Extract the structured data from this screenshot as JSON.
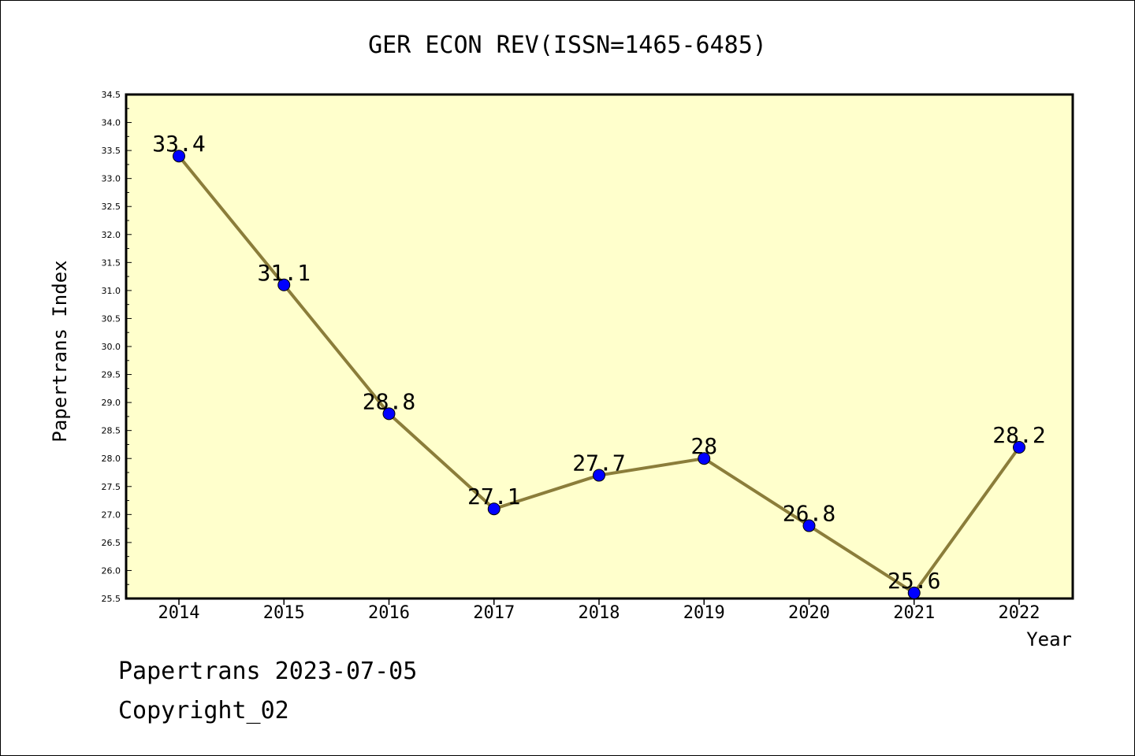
{
  "chart_data": {
    "type": "line",
    "title": "GER ECON REV(ISSN=1465-6485)",
    "xlabel": "Year",
    "ylabel": "Papertrans Index",
    "categories": [
      "2014",
      "2015",
      "2016",
      "2017",
      "2018",
      "2019",
      "2020",
      "2021",
      "2022"
    ],
    "series": [
      {
        "values": [
          33.4,
          31.1,
          28.8,
          27.1,
          27.7,
          28,
          26.8,
          25.6,
          28.2
        ]
      }
    ],
    "data_labels": [
      "33.4",
      "31.1",
      "28.8",
      "27.1",
      "27.7",
      "28",
      "26.8",
      "25.6",
      "28.2"
    ],
    "ylim": [
      25.5,
      34.5
    ],
    "yticks": [
      "25.5",
      "26.0",
      "26.5",
      "27.0",
      "27.5",
      "28.0",
      "28.5",
      "29.0",
      "29.5",
      "30.0",
      "30.5",
      "31.0",
      "31.5",
      "32.0",
      "32.5",
      "33.0",
      "33.5",
      "34.0",
      "34.5"
    ],
    "grid": false,
    "colors": {
      "plot_background": "#ffffcc",
      "line": "#8b7d3a",
      "marker": "#0000ff"
    }
  },
  "footer": {
    "line1": "Papertrans 2023-07-05",
    "line2": "Copyright_02"
  }
}
